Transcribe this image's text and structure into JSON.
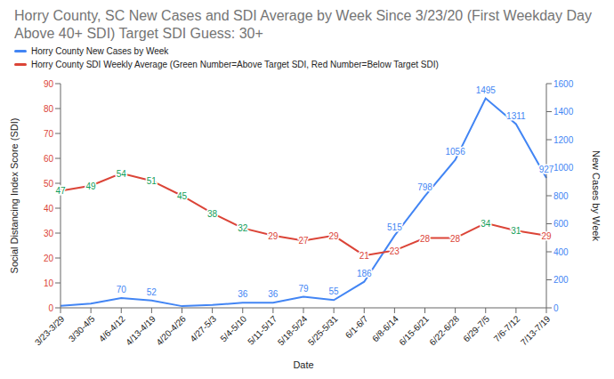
{
  "chart_data": {
    "type": "line",
    "title": "Horry County, SC New Cases and SDI Average by Week Since 3/23/20 (First Weekday Day Above 40+ SDI) Target SDI Guess: 30+",
    "x_label": "Date",
    "y_label": "Social Distancing Index Score (SDI)",
    "y2_label": "New Cases by Week",
    "categories": [
      "3/23-3/29",
      "3/30-4/5",
      "4/6-4/12",
      "4/13-4/19",
      "4/20-4/26",
      "4/27-5/3",
      "5/4-5/10",
      "5/11-5/17",
      "5/18-5/24",
      "5/25-5/31",
      "6/1-6/7",
      "6/8-6/14",
      "6/15-6/21",
      "6/22-6/28",
      "6/29-7/5",
      "7/6-7/12",
      "7/13-7/19"
    ],
    "series": [
      {
        "name": "Horry County New Cases by Week",
        "color": "#4285f4",
        "axis": "y2",
        "values": [
          15,
          30,
          70,
          52,
          12,
          20,
          36,
          36,
          79,
          55,
          186,
          515,
          798,
          1056,
          1495,
          1311,
          927
        ],
        "value_labels": [
          null,
          null,
          "70",
          "52",
          null,
          null,
          "36",
          "36",
          "79",
          "55",
          "186",
          "515",
          "798",
          "1056",
          "1495",
          "1311",
          "927"
        ]
      },
      {
        "name": "Horry County SDI Weekly Average (Green Number=Above Target SDI, Red Number=Below Target SDI)",
        "color": "#db4437",
        "values": [
          47,
          49,
          54,
          51,
          45,
          38,
          32,
          29,
          27,
          29,
          21,
          23,
          28,
          28,
          34,
          31,
          29
        ],
        "colors": [
          "#0f9d58",
          "#0f9d58",
          "#0f9d58",
          "#0f9d58",
          "#0f9d58",
          "#0f9d58",
          "#0f9d58",
          "#db4437",
          "#db4437",
          "#db4437",
          "#db4437",
          "#db4437",
          "#db4437",
          "#db4437",
          "#0f9d58",
          "#0f9d58",
          "#db4437"
        ]
      }
    ],
    "ylim": [
      0,
      90
    ],
    "yticks": [
      0,
      10,
      20,
      30,
      40,
      50,
      60,
      70,
      80,
      90
    ],
    "y2lim": [
      0,
      1600
    ],
    "y2ticks": [
      0,
      200,
      400,
      600,
      800,
      1000,
      1200,
      1400,
      1600
    ],
    "legend": "top",
    "data_labels": true,
    "grid": false
  }
}
